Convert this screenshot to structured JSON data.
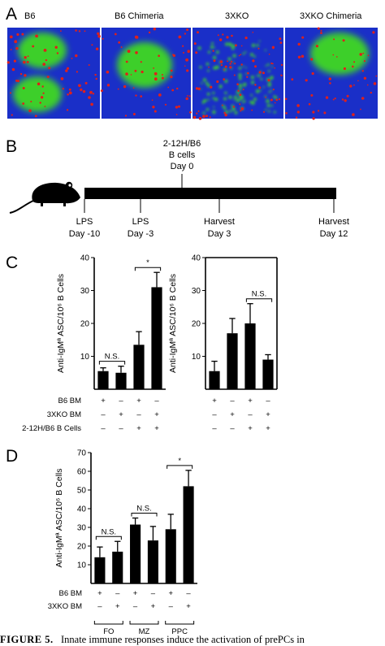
{
  "panels": {
    "A": "A",
    "B": "B",
    "C": "C",
    "D": "D"
  },
  "panel_a": {
    "images": [
      {
        "label": "B6"
      },
      {
        "label": "B6 Chimeria"
      },
      {
        "label": "3XKO"
      },
      {
        "label": "3XKO Chimeria"
      }
    ]
  },
  "panel_b": {
    "top_label": [
      "2-12H/B6",
      "B cells",
      "Day 0"
    ],
    "timepoints": [
      {
        "line1": "LPS",
        "line2": "Day -10"
      },
      {
        "line1": "LPS",
        "line2": "Day -3"
      },
      {
        "line1": "Harvest",
        "line2": "Day 3"
      },
      {
        "line1": "Harvest",
        "line2": "Day 12"
      }
    ],
    "icons": [
      "mouse-icon"
    ]
  },
  "colors": {
    "bar": "#000000",
    "axis": "#000000",
    "tissue_blue": "#1a2fc8",
    "tissue_green": "#3ecf2a",
    "tissue_red": "#e0201a"
  },
  "chart_data": [
    {
      "type": "bar",
      "panel": "C-left",
      "ylabel": "Anti-IgMª ASC/10⁶ B Cells",
      "ylim": [
        0,
        40
      ],
      "yticks": [
        "10",
        "20",
        "30",
        "40"
      ],
      "values": [
        5.5,
        5.0,
        13.5,
        31.0
      ],
      "errors": [
        1.0,
        2.0,
        4.0,
        4.5
      ],
      "rows": [
        {
          "label": "B6 BM",
          "marks": [
            "+",
            "–",
            "+",
            "–"
          ]
        },
        {
          "label": "3XKO BM",
          "marks": [
            "–",
            "+",
            "–",
            "+"
          ]
        },
        {
          "label": "2-12H/B6 B Cells",
          "marks": [
            "–",
            "–",
            "+",
            "+"
          ]
        }
      ],
      "annotations": [
        {
          "text": "N.S.",
          "between": [
            0,
            1
          ]
        },
        {
          "text": "*",
          "between": [
            2,
            3
          ]
        }
      ]
    },
    {
      "type": "bar",
      "panel": "C-right",
      "ylabel": "Anti-IgMª ASC/10⁶ B Cells",
      "ylim": [
        0,
        40
      ],
      "yticks": [
        "10",
        "20",
        "30",
        "40"
      ],
      "values": [
        5.5,
        17.0,
        20.0,
        9.0
      ],
      "errors": [
        3.0,
        4.5,
        6.0,
        1.5
      ],
      "annotations": [
        {
          "text": "N.S.",
          "between": [
            2,
            3
          ]
        }
      ]
    },
    {
      "type": "bar",
      "panel": "D",
      "ylabel": "Anti-IgMª ASC/10⁶ B Cells",
      "ylim": [
        0,
        70
      ],
      "yticks": [
        "10",
        "20",
        "30",
        "40",
        "50",
        "60",
        "70"
      ],
      "values": [
        14.0,
        17.0,
        31.5,
        23.0,
        29.0,
        52.0
      ],
      "errors": [
        5.5,
        5.5,
        3.5,
        7.5,
        8.0,
        8.5
      ],
      "rows": [
        {
          "label": "B6 BM",
          "marks": [
            "+",
            "–",
            "+",
            "–",
            "+",
            "–"
          ]
        },
        {
          "label": "3XKO BM",
          "marks": [
            "–",
            "+",
            "–",
            "+",
            "–",
            "+"
          ]
        }
      ],
      "groups": [
        "FO",
        "MZ",
        "PPC"
      ],
      "annotations": [
        {
          "text": "N.S.",
          "between": [
            0,
            1
          ]
        },
        {
          "text": "N.S.",
          "between": [
            2,
            3
          ]
        },
        {
          "text": "*",
          "between": [
            4,
            5
          ]
        }
      ]
    }
  ],
  "caption": {
    "figure": "FIGURE 5.",
    "text": "Innate immune responses induce the activation of prePCs in"
  }
}
